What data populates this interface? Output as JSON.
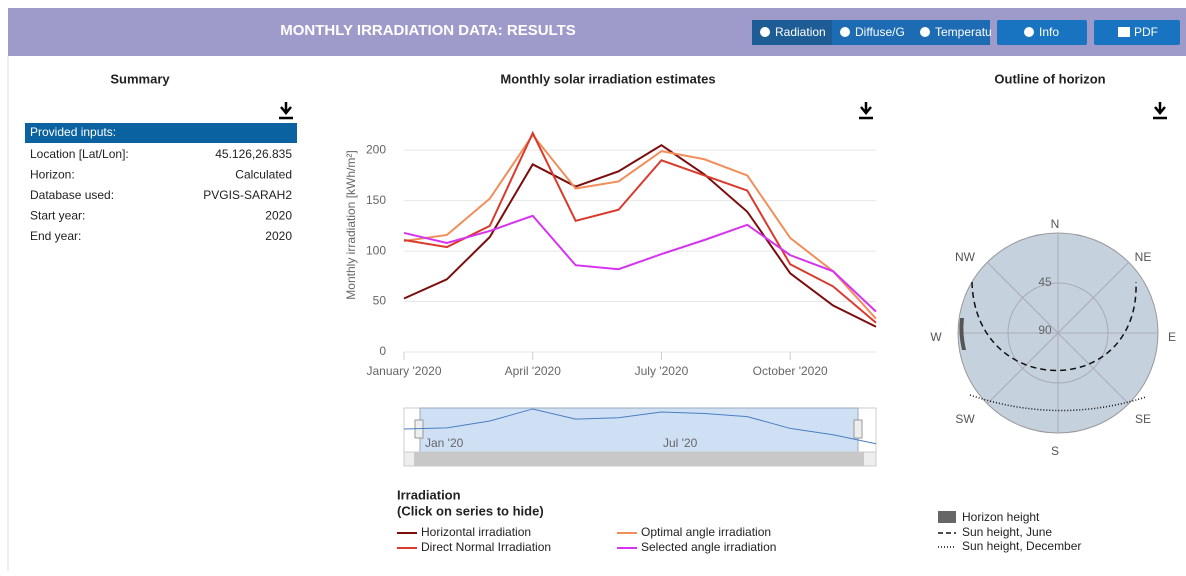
{
  "header": {
    "title": "MONTHLY IRRADIATION DATA: RESULTS"
  },
  "buttons": [
    "Radiation",
    "Diffuse/G",
    "Temperatu",
    "Info",
    "PDF"
  ],
  "summary": {
    "title": "Summary",
    "table": {
      "header": "Provided inputs:",
      "rows": [
        [
          "Location [Lat/Lon]:",
          "45.126,26.835"
        ],
        [
          "Horizon:",
          "Calculated"
        ],
        [
          "Database used:",
          "PVGIS-SARAH2"
        ],
        [
          "Start year:",
          "2020"
        ],
        [
          "End year:",
          "2020"
        ]
      ]
    }
  },
  "chart_data": {
    "type": "line",
    "title": "Monthly solar irradiation estimates",
    "y_label": "Monthly irradiation [kWh/m²]",
    "categories": [
      "January '2020",
      null,
      null,
      "April '2020",
      null,
      null,
      "July '2020",
      null,
      null,
      "October '2020",
      null,
      null
    ],
    "series": [
      {
        "name": "Horizontal irradiation",
        "color": "#7b0d0d",
        "values": [
          53,
          72,
          114,
          186,
          164,
          179,
          205,
          176,
          139,
          78,
          46,
          25
        ]
      },
      {
        "name": "Optimal angle irradiation",
        "color": "#f28e5a",
        "values": [
          110,
          116,
          152,
          215,
          162,
          169,
          199,
          191,
          175,
          113,
          80,
          33
        ]
      },
      {
        "name": "Direct Normal Irradiation",
        "color": "#d93a2b",
        "values": [
          111,
          104,
          125,
          217,
          130,
          141,
          190,
          175,
          160,
          87,
          65,
          29
        ]
      },
      {
        "name": "Selected angle irradiation",
        "color": "#d633f0",
        "values": [
          118,
          108,
          120,
          135,
          86,
          82,
          97,
          111,
          126,
          96,
          80,
          40
        ]
      }
    ],
    "ylim": [
      0,
      220
    ],
    "yticks": [
      0,
      50,
      100,
      150,
      200
    ],
    "grid": true,
    "navigator_labels": [
      "Jan '20",
      "Jul '20"
    ],
    "legend_title": "Irradiation",
    "legend_note": "(Click on series to hide)"
  },
  "horizon": {
    "title": "Outline of horizon",
    "directions": [
      "N",
      "NE",
      "E",
      "SE",
      "S",
      "SW",
      "W",
      "NW"
    ],
    "ring_labels": [
      45,
      90
    ],
    "legend": [
      "Horizon height",
      "Sun height, June",
      "Sun height, December"
    ]
  }
}
